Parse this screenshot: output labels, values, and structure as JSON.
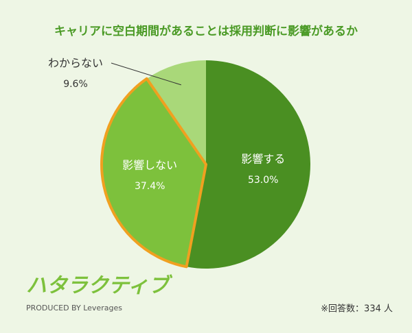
{
  "chart_data": {
    "type": "pie",
    "title": "キャリアに空白期間があることは採用判断に影響があるか",
    "categories": [
      "影響する",
      "影響しない",
      "わからない"
    ],
    "values": [
      53.0,
      37.4,
      9.6
    ],
    "value_labels": [
      "53.0%",
      "37.4%",
      "9.6%"
    ],
    "colors": [
      "#4a8f22",
      "#7dc13c",
      "#a9d879"
    ],
    "highlight_color": "#f0a020",
    "highlight_index": 1,
    "note": "※回答数：334 人"
  },
  "brand": {
    "logo": "ハタラクティブ",
    "tagline": "PRODUCED BY Leverages"
  }
}
